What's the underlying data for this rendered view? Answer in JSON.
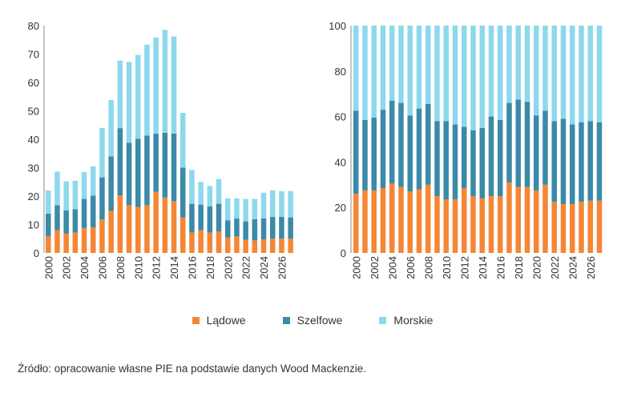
{
  "colors": {
    "ladowe": "#f58634",
    "szelfowe": "#3a8aa8",
    "morskie": "#8dd8ec"
  },
  "legend": [
    {
      "label": "Lądowe",
      "color": "#f58634"
    },
    {
      "label": "Szelfowe",
      "color": "#3a8aa8"
    },
    {
      "label": "Morskie",
      "color": "#8dd8ec"
    }
  ],
  "source": "Źródło: opracowanie własne PIE na podstawie danych Wood Mackenzie.",
  "chart_data": [
    {
      "type": "bar",
      "stacked": true,
      "title": "",
      "xlabel": "",
      "ylabel": "",
      "ylim": [
        0,
        80
      ],
      "yticks": [
        0,
        10,
        20,
        30,
        40,
        50,
        60,
        70,
        80
      ],
      "xtick_labels": [
        "2000",
        "2002",
        "2004",
        "2006",
        "2008",
        "2010",
        "2012",
        "2014",
        "2016",
        "2018",
        "2020",
        "2022",
        "2024",
        "2026"
      ],
      "categories": [
        "2000",
        "2001",
        "2002",
        "2003",
        "2004",
        "2005",
        "2006",
        "2007",
        "2008",
        "2009",
        "2010",
        "2011",
        "2012",
        "2013",
        "2014",
        "2015",
        "2016",
        "2017",
        "2018",
        "2019",
        "2020",
        "2021",
        "2022",
        "2023",
        "2024",
        "2025",
        "2026",
        "2027"
      ],
      "series": [
        {
          "name": "Lądowe",
          "values": [
            5.8,
            8.0,
            6.8,
            7.2,
            8.8,
            9.0,
            11.8,
            14.8,
            20.2,
            16.8,
            16.2,
            16.8,
            21.5,
            19.5,
            18.2,
            12.5,
            7.2,
            8.0,
            7.2,
            7.5,
            5.4,
            5.8,
            4.6,
            4.4,
            4.8,
            5.0,
            5.0,
            5.0
          ]
        },
        {
          "name": "Szelfowe",
          "values": [
            8.0,
            8.8,
            8.2,
            8.2,
            10.2,
            11.2,
            14.8,
            19.2,
            23.7,
            22.0,
            24.0,
            24.5,
            20.5,
            22.8,
            23.8,
            17.5,
            10.1,
            9.0,
            9.2,
            9.8,
            6.1,
            6.3,
            6.5,
            7.5,
            7.3,
            7.7,
            7.7,
            7.5
          ]
        },
        {
          "name": "Morskie",
          "values": [
            8.2,
            11.8,
            10.2,
            10.0,
            9.5,
            10.3,
            17.4,
            19.8,
            23.8,
            28.4,
            29.5,
            32.0,
            33.8,
            36.2,
            34.2,
            19.3,
            11.9,
            8.0,
            7.2,
            8.7,
            7.7,
            7.1,
            7.9,
            7.1,
            9.1,
            9.3,
            9.0,
            9.3
          ]
        }
      ]
    },
    {
      "type": "bar",
      "stacked": true,
      "percent": true,
      "title": "",
      "xlabel": "",
      "ylabel": "",
      "ylim": [
        0,
        100
      ],
      "yticks": [
        0,
        20,
        40,
        60,
        80,
        100
      ],
      "xtick_labels": [
        "2000",
        "2002",
        "2004",
        "2006",
        "2008",
        "2010",
        "2012",
        "2014",
        "2016",
        "2018",
        "2020",
        "2022",
        "2024",
        "2026"
      ],
      "categories": [
        "2000",
        "2001",
        "2002",
        "2003",
        "2004",
        "2005",
        "2006",
        "2007",
        "2008",
        "2009",
        "2010",
        "2011",
        "2012",
        "2013",
        "2014",
        "2015",
        "2016",
        "2017",
        "2018",
        "2019",
        "2020",
        "2021",
        "2022",
        "2023",
        "2024",
        "2025",
        "2026",
        "2027"
      ],
      "series": [
        {
          "name": "Lądowe",
          "values": [
            26,
            27.5,
            27.5,
            28.5,
            30.5,
            29,
            27,
            28,
            30,
            25,
            23.5,
            23.5,
            28.5,
            25,
            24,
            25,
            25,
            31,
            29,
            29,
            27.5,
            30,
            22.5,
            21.5,
            21.5,
            22.5,
            23,
            23
          ]
        },
        {
          "name": "Szelfowe",
          "values": [
            36.5,
            31,
            32,
            34.5,
            36.5,
            37,
            33.5,
            35.5,
            35.5,
            33,
            34.5,
            33,
            27,
            29,
            31,
            35,
            33.5,
            35,
            38.5,
            37.5,
            33,
            32.5,
            35.5,
            37.5,
            35,
            35,
            35,
            34.5
          ]
        },
        {
          "name": "Morskie",
          "values": [
            37.5,
            41.5,
            40.5,
            37,
            33,
            34,
            39.5,
            36.5,
            34.5,
            42,
            42,
            43.5,
            44.5,
            46,
            45,
            40,
            41.5,
            34,
            32.5,
            33.5,
            39.5,
            37.5,
            42,
            41,
            43.5,
            42.5,
            42,
            42.5
          ]
        }
      ]
    }
  ]
}
